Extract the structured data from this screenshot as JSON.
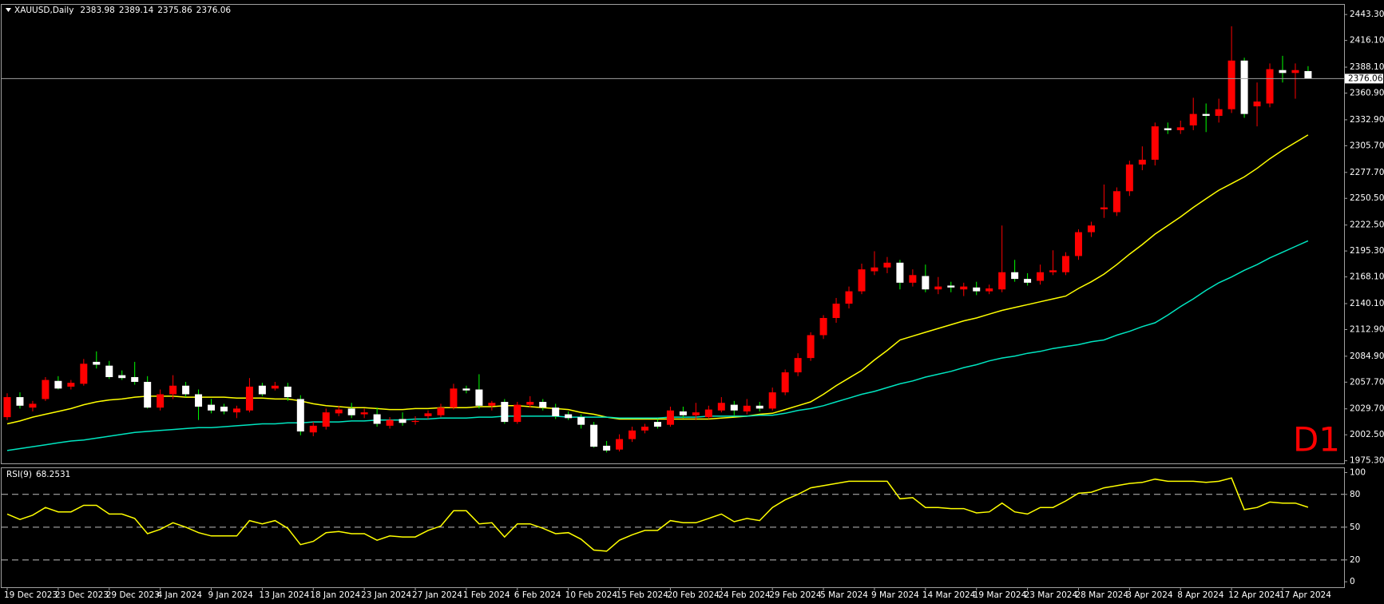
{
  "chart_data": [
    {
      "type": "candlestick",
      "symbol": "XAUUSD,Daily",
      "annotation": "D1",
      "categories": [
        "19 Dec 2023",
        null,
        null,
        null,
        "23 Dec 2023",
        null,
        null,
        null,
        "29 Dec 2023",
        null,
        null,
        null,
        "4 Jan 2024",
        null,
        null,
        null,
        "9 Jan 2024",
        null,
        null,
        null,
        "13 Jan 2024",
        null,
        null,
        null,
        "18 Jan 2024",
        null,
        null,
        null,
        "23 Jan 2024",
        null,
        null,
        null,
        "27 Jan 2024",
        null,
        null,
        null,
        "1 Feb 2024",
        null,
        null,
        null,
        "6 Feb 2024",
        null,
        null,
        null,
        "10 Feb 2024",
        null,
        null,
        null,
        "15 Feb 2024",
        null,
        null,
        null,
        "20 Feb 2024",
        null,
        null,
        null,
        "24 Feb 2024",
        null,
        null,
        null,
        "29 Feb 2024",
        null,
        null,
        null,
        "5 Mar 2024",
        null,
        null,
        null,
        "9 Mar 2024",
        null,
        null,
        null,
        "14 Mar 2024",
        null,
        null,
        null,
        "19 Mar 2024",
        null,
        null,
        null,
        "23 Mar 2024",
        null,
        null,
        null,
        "28 Mar 2024",
        null,
        null,
        null,
        "3 Apr 2024",
        null,
        null,
        null,
        "8 Apr 2024",
        null,
        null,
        null,
        "12 Apr 2024",
        null,
        null,
        null,
        "17 Apr 2024",
        null,
        null
      ],
      "open": [
        2021,
        2042,
        2031,
        2040,
        2059,
        2053,
        2056,
        2079,
        2075,
        2065,
        2063,
        2058,
        2031,
        2045,
        2054,
        2045,
        2034,
        2032,
        2026,
        2028,
        2054,
        2051,
        2053,
        2040,
        2005,
        2011,
        2025,
        2030,
        2024,
        2024,
        2012,
        2019,
        2016,
        2022,
        2023,
        2031,
        2051,
        2050,
        2033,
        2037,
        2016,
        2034,
        2037,
        2031,
        2024,
        2021,
        2013,
        1991,
        1987,
        1998,
        2007,
        2016,
        2013,
        2027,
        2023,
        2021,
        2028,
        2034,
        2027,
        2033,
        2030,
        2047,
        2068,
        2083,
        2107,
        2125,
        2140,
        2153,
        2174,
        2178,
        2183,
        2162,
        2169,
        2155,
        2159,
        2155,
        2157,
        2153,
        2155,
        2173,
        2166,
        2164,
        2173,
        2173,
        2190,
        2215,
        2239,
        2236,
        2258,
        2286,
        2291,
        2324,
        2322,
        2327,
        2339,
        2337,
        2344,
        2395,
        2347,
        2350,
        2385,
        2382,
        2383.98
      ],
      "high": [
        2046,
        2047,
        2038,
        2063,
        2064,
        2060,
        2082,
        2090,
        2080,
        2070,
        2079,
        2064,
        2050,
        2065,
        2058,
        2050,
        2040,
        2035,
        2033,
        2062,
        2057,
        2058,
        2057,
        2044,
        2016,
        2030,
        2033,
        2036,
        2030,
        2031,
        2021,
        2026,
        2022,
        2028,
        2035,
        2056,
        2054,
        2066,
        2038,
        2040,
        2037,
        2043,
        2040,
        2035,
        2027,
        2024,
        2016,
        1996,
        2003,
        2011,
        2014,
        2019,
        2032,
        2032,
        2036,
        2033,
        2042,
        2038,
        2040,
        2037,
        2052,
        2071,
        2088,
        2110,
        2128,
        2146,
        2158,
        2182,
        2195,
        2189,
        2186,
        2176,
        2181,
        2168,
        2163,
        2162,
        2163,
        2160,
        2222,
        2186,
        2172,
        2181,
        2196,
        2194,
        2218,
        2226,
        2265,
        2262,
        2290,
        2305,
        2330,
        2330,
        2332,
        2356,
        2350,
        2355,
        2431,
        2398,
        2372,
        2392,
        2400,
        2392,
        2389.14
      ],
      "low": [
        2018,
        2030,
        2027,
        2038,
        2050,
        2050,
        2054,
        2072,
        2061,
        2060,
        2055,
        2030,
        2028,
        2040,
        2042,
        2018,
        2025,
        2024,
        2020,
        2026,
        2043,
        2049,
        2038,
        2002,
        2001,
        2008,
        2022,
        2020,
        2020,
        2011,
        2009,
        2012,
        2013,
        2019,
        2021,
        2029,
        2046,
        2030,
        2028,
        2014,
        2014,
        2031,
        2028,
        2019,
        2018,
        2009,
        1989,
        1984,
        1985,
        1995,
        2004,
        2009,
        2011,
        2020,
        2018,
        2019,
        2026,
        2023,
        2024,
        2027,
        2028,
        2044,
        2064,
        2080,
        2103,
        2120,
        2135,
        2150,
        2170,
        2172,
        2155,
        2158,
        2152,
        2150,
        2152,
        2148,
        2149,
        2150,
        2152,
        2163,
        2159,
        2160,
        2170,
        2170,
        2186,
        2210,
        2230,
        2232,
        2253,
        2280,
        2285,
        2318,
        2318,
        2322,
        2320,
        2330,
        2340,
        2335,
        2326,
        2346,
        2372,
        2355,
        2375.86
      ],
      "close": [
        2042,
        2033,
        2035,
        2060,
        2051,
        2057,
        2077,
        2076,
        2063,
        2062,
        2058,
        2031,
        2045,
        2054,
        2045,
        2032,
        2028,
        2027,
        2030,
        2053,
        2045,
        2054,
        2042,
        2006,
        2012,
        2026,
        2029,
        2023,
        2026,
        2014,
        2018,
        2015,
        2017,
        2025,
        2031,
        2051,
        2049,
        2033,
        2036,
        2016,
        2034,
        2037,
        2031,
        2022,
        2020,
        2013,
        1990,
        1986,
        1998,
        2007,
        2011,
        2011,
        2028,
        2023,
        2026,
        2029,
        2036,
        2028,
        2033,
        2030,
        2047,
        2068,
        2083,
        2107,
        2125,
        2140,
        2153,
        2176,
        2178,
        2183,
        2162,
        2170,
        2155,
        2158,
        2157,
        2158,
        2153,
        2156,
        2173,
        2166,
        2162,
        2173,
        2175,
        2190,
        2215,
        2222,
        2241,
        2258,
        2286,
        2291,
        2326,
        2322,
        2325,
        2339,
        2337,
        2344,
        2395,
        2339,
        2352,
        2386,
        2382,
        2385,
        2376.06
      ],
      "up_color": "#ff0000",
      "down_color": "#ffffff",
      "up_wick_color": "#ff0000",
      "down_wick_color": "#00ff00",
      "series": [
        {
          "color": "#ffff00",
          "values": [
            2014,
            2017,
            2021,
            2024,
            2027,
            2030,
            2034,
            2037,
            2039,
            2040,
            2042,
            2043,
            2043,
            2043,
            2042,
            2042,
            2042,
            2042,
            2041,
            2041,
            2041,
            2040,
            2040,
            2038,
            2035,
            2033,
            2032,
            2031,
            2031,
            2030,
            2029,
            2029,
            2030,
            2030,
            2031,
            2031,
            2031,
            2032,
            2032,
            2033,
            2033,
            2032,
            2031,
            2030,
            2029,
            2026,
            2024,
            2021,
            2019,
            2019,
            2019,
            2019,
            2019,
            2019,
            2019,
            2019,
            2020,
            2021,
            2022,
            2024,
            2025,
            2029,
            2033,
            2037,
            2045,
            2054,
            2062,
            2070,
            2081,
            2091,
            2102,
            2106,
            2110,
            2114,
            2118,
            2122,
            2125,
            2129,
            2133,
            2136,
            2139,
            2142,
            2145,
            2148,
            2156,
            2163,
            2171,
            2181,
            2192,
            2202,
            2213,
            2222,
            2231,
            2241,
            2250,
            2259,
            2266,
            2273,
            2282,
            2292,
            2301,
            2309,
            2317
          ]
        },
        {
          "color": "#00e5c0",
          "values": [
            1986,
            1988,
            1990,
            1992,
            1994,
            1996,
            1997,
            1999,
            2001,
            2003,
            2005,
            2006,
            2007,
            2008,
            2009,
            2010,
            2010,
            2011,
            2012,
            2013,
            2014,
            2014,
            2015,
            2015,
            2016,
            2016,
            2016,
            2017,
            2017,
            2018,
            2018,
            2018,
            2019,
            2019,
            2020,
            2020,
            2020,
            2021,
            2021,
            2022,
            2022,
            2022,
            2022,
            2022,
            2021,
            2021,
            2021,
            2021,
            2020,
            2020,
            2020,
            2020,
            2021,
            2021,
            2021,
            2022,
            2022,
            2022,
            2022,
            2023,
            2023,
            2025,
            2028,
            2030,
            2033,
            2037,
            2041,
            2045,
            2048,
            2052,
            2056,
            2059,
            2063,
            2066,
            2069,
            2073,
            2076,
            2080,
            2083,
            2085,
            2088,
            2090,
            2093,
            2095,
            2097,
            2100,
            2102,
            2107,
            2111,
            2116,
            2120,
            2128,
            2137,
            2145,
            2154,
            2162,
            2168,
            2175,
            2181,
            2188,
            2194,
            2200,
            2206
          ]
        }
      ],
      "ylim": [
        1972.5,
        2453.5
      ],
      "yticks": [
        {
          "value": 1975.3,
          "label": "1975.30"
        },
        {
          "value": 2002.5,
          "label": "2002.50"
        },
        {
          "value": 2029.7,
          "label": "2029.70"
        },
        {
          "value": 2057.7,
          "label": "2057.70"
        },
        {
          "value": 2084.9,
          "label": "2084.90"
        },
        {
          "value": 2112.9,
          "label": "2112.90"
        },
        {
          "value": 2140.1,
          "label": "2140.10"
        },
        {
          "value": 2168.1,
          "label": "2168.10"
        },
        {
          "value": 2195.3,
          "label": "2195.30"
        },
        {
          "value": 2222.5,
          "label": "2222.50"
        },
        {
          "value": 2250.5,
          "label": "2250.50"
        },
        {
          "value": 2277.7,
          "label": "2277.70"
        },
        {
          "value": 2305.7,
          "label": "2305.70"
        },
        {
          "value": 2332.9,
          "label": "2332.90"
        },
        {
          "value": 2360.9,
          "label": "2360.90"
        },
        {
          "value": 2388.1,
          "label": "2388.10"
        },
        {
          "value": 2416.1,
          "label": "2416.10"
        },
        {
          "value": 2443.3,
          "label": "2443.30"
        }
      ]
    },
    {
      "type": "line",
      "label": "RSI(9)",
      "color": "#ffff00",
      "values": [
        62,
        57,
        61,
        68,
        64,
        64,
        70,
        70,
        62,
        62,
        58,
        44,
        48,
        54,
        50,
        45,
        42,
        42,
        42,
        56,
        53,
        56,
        49,
        34,
        37,
        45,
        46,
        44,
        44,
        38,
        42,
        41,
        41,
        47,
        51,
        65,
        65,
        53,
        54,
        41,
        53,
        53,
        49,
        44,
        45,
        39,
        29,
        28,
        38,
        43,
        47,
        47,
        56,
        54,
        54,
        58,
        62,
        55,
        58,
        56,
        68,
        75,
        80,
        86,
        88,
        90,
        92,
        92,
        92,
        92,
        76,
        77,
        68,
        68,
        67,
        67,
        63,
        64,
        72,
        64,
        62,
        68,
        68,
        74,
        81,
        82,
        86,
        88,
        90,
        91,
        94,
        92,
        92,
        92,
        91,
        92,
        95,
        66,
        68,
        73,
        72,
        72,
        68.2531
      ],
      "ylim": [
        -5,
        104
      ],
      "yticks": [
        0,
        20,
        50,
        80,
        100
      ],
      "levels": [
        20,
        50,
        80
      ]
    }
  ]
}
